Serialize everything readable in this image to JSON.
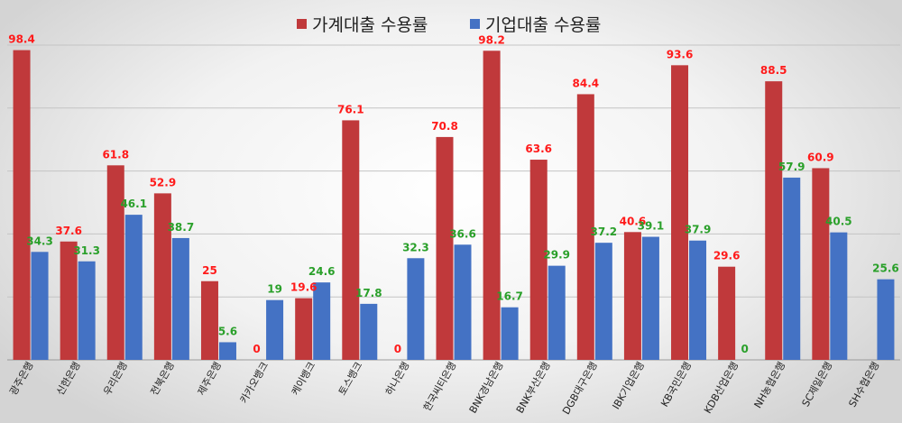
{
  "chart_data": {
    "type": "bar",
    "title": "",
    "xlabel": "",
    "ylabel": "",
    "ylim": [
      0,
      100
    ],
    "grid": true,
    "legend_position": "top",
    "categories": [
      "광주은행",
      "신한은행",
      "우리은행",
      "전북은행",
      "제주은행",
      "카카오뱅크",
      "케이뱅크",
      "토스뱅크",
      "하나은행",
      "한국씨티은행",
      "BNK경남은행",
      "BNK부산은행",
      "DGB대구은행",
      "IBK기업은행",
      "KB국민은행",
      "KDB산업은행",
      "NH농협은행",
      "SC제일은행",
      "SH수협은행"
    ],
    "series": [
      {
        "name": "가계대출 수용률",
        "color": "#c0393b",
        "label_color": "#ff1a1a",
        "values": [
          98.4,
          37.6,
          61.8,
          52.9,
          25,
          0,
          19.6,
          76.1,
          0,
          70.8,
          98.2,
          63.6,
          84.4,
          40.6,
          93.6,
          29.6,
          88.5,
          60.9,
          null
        ],
        "labels": [
          "98.4",
          "37.6",
          "61.8",
          "52.9",
          "25",
          "0",
          "19.6",
          "76.1",
          "0",
          "70.8",
          "98.2",
          "63.6",
          "84.4",
          "40.6",
          "93.6",
          "29.6",
          "88.5",
          "60.9",
          ""
        ]
      },
      {
        "name": "기업대출 수용률",
        "color": "#4472c4",
        "label_color": "#2aa02a",
        "values": [
          34.3,
          31.3,
          46.1,
          38.7,
          5.6,
          19,
          24.6,
          17.8,
          32.3,
          36.6,
          16.7,
          29.9,
          37.2,
          39.1,
          37.9,
          0,
          57.9,
          40.5,
          25.6
        ],
        "labels": [
          "34.3",
          "31.3",
          "46.1",
          "38.7",
          "5.6",
          "19",
          "24.6",
          "17.8",
          "32.3",
          "36.6",
          "16.7",
          "29.9",
          "37.2",
          "39.1",
          "37.9",
          "0",
          "57.9",
          "40.5",
          "25.6"
        ]
      }
    ]
  }
}
